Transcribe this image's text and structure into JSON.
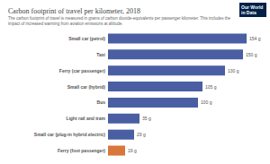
{
  "chart_data": {
    "type": "bar",
    "orientation": "horizontal",
    "title": "Carbon footprint of travel per kilometer, 2018",
    "subtitle": "The carbon footprint of travel is measured in grams of carbon dioxide-equivalents per passenger kilometer. This includes the impact of increased warming from aviation emissions at altitude.",
    "logo": "Our World in Data",
    "categories": [
      "Small car (petrol)",
      "Taxi",
      "Ferry (car passenger)",
      "Small car (hybrid)",
      "Bus",
      "Light rail and tram",
      "Small car (plug-in hybrid electric)",
      "Ferry (foot passenger)"
    ],
    "values": [
      154,
      150,
      130,
      105,
      100,
      35,
      29,
      19
    ],
    "value_labels": [
      "154 g",
      "150 g",
      "130 g",
      "105 g",
      "100 g",
      "35 g",
      "29 g",
      "19 g"
    ],
    "colors": [
      "#4a5fa3",
      "#4a5fa3",
      "#4a5fa3",
      "#4a5fa3",
      "#4a5fa3",
      "#4a5fa3",
      "#4a5fa3",
      "#d9763a"
    ],
    "xlim": [
      0,
      154
    ],
    "data_labels": true,
    "tick_labels": false,
    "grid": false
  }
}
